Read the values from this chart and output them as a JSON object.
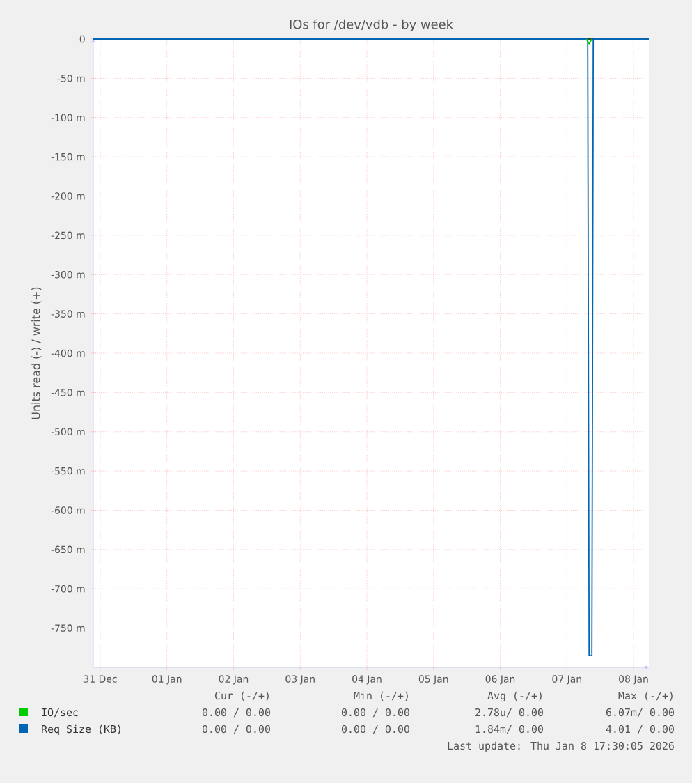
{
  "chart_data": {
    "type": "line",
    "title": "IOs for /dev/vdb - by week",
    "ylabel": "Units read (-) / write (+)",
    "xlim": [
      "2025-12-31T09:30",
      "2026-01-08T17:30"
    ],
    "xticks": [
      {
        "value": "2025-12-31T12:00",
        "label": "31 Dec"
      },
      {
        "value": "2026-01-01T12:00",
        "label": "01 Jan"
      },
      {
        "value": "2026-01-02T12:00",
        "label": "02 Jan"
      },
      {
        "value": "2026-01-03T12:00",
        "label": "03 Jan"
      },
      {
        "value": "2026-01-04T12:00",
        "label": "04 Jan"
      },
      {
        "value": "2026-01-05T12:00",
        "label": "05 Jan"
      },
      {
        "value": "2026-01-06T12:00",
        "label": "06 Jan"
      },
      {
        "value": "2026-01-07T12:00",
        "label": "07 Jan"
      },
      {
        "value": "2026-01-08T12:00",
        "label": "08 Jan"
      }
    ],
    "ylim": [
      -800,
      0
    ],
    "yticks": [
      0,
      {
        "value": -50,
        "label": "-50 m"
      },
      {
        "value": -100,
        "label": "-100 m"
      },
      {
        "value": -150,
        "label": "-150 m"
      },
      {
        "value": -200,
        "label": "-200 m"
      },
      {
        "value": -250,
        "label": "-250 m"
      },
      {
        "value": -300,
        "label": "-300 m"
      },
      {
        "value": -350,
        "label": "-350 m"
      },
      {
        "value": -400,
        "label": "-400 m"
      },
      {
        "value": -450,
        "label": "-450 m"
      },
      {
        "value": -500,
        "label": "-500 m"
      },
      {
        "value": -550,
        "label": "-550 m"
      },
      {
        "value": -600,
        "label": "-600 m"
      },
      {
        "value": -650,
        "label": "-650 m"
      },
      {
        "value": -700,
        "label": "-700 m"
      },
      {
        "value": -750,
        "label": "-750 m"
      }
    ],
    "grid": true,
    "legend": "bottom left",
    "marker": "none",
    "line_style": "solid",
    "series": [
      {
        "name": "IO/sec",
        "color": "#00cc00",
        "x": [
          "2026-01-07T19:00",
          "2026-01-07T20:00",
          "2026-01-07T21:00"
        ],
        "values": [
          0,
          -6,
          0
        ]
      },
      {
        "name": "Req Size (KB)",
        "color": "#0066b3",
        "x": [
          "2025-12-31T09:30",
          "2026-01-07T19:30",
          "2026-01-07T20:00",
          "2026-01-07T21:00",
          "2026-01-07T21:30",
          "2026-01-08T17:30"
        ],
        "values": [
          0,
          0,
          -785,
          -785,
          0,
          0
        ]
      }
    ],
    "annotations": [
      "Cur (-/+)",
      "Min (-/+)",
      "Avg (-/+)",
      "Max (-/+)",
      "0.00 / 0.00",
      "0.00 / 0.00",
      "2.78u/ 0.00",
      "6.07m/ 0.00",
      "0.00 / 0.00",
      "0.00 / 0.00",
      "1.84m/ 0.00",
      "4.01 / 0.00",
      "Last update: Thu Jan  8 17:30:05 2026"
    ]
  }
}
